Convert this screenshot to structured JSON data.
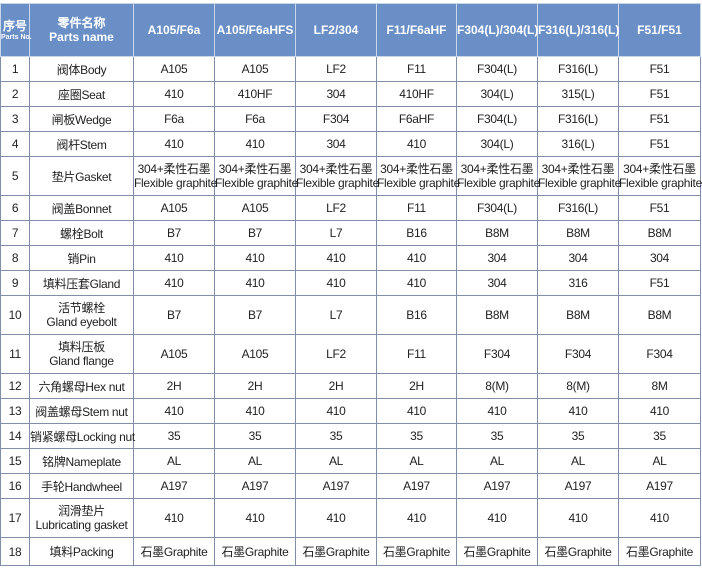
{
  "header": {
    "no_cn": "序号",
    "no_en": "Parts No.",
    "name_cn": "零件名称",
    "name_en": "Parts name",
    "materials": [
      "A105/F6a",
      "A105/F6aHFS",
      "LF2/304",
      "F11/F6aHF",
      "F304(L)/304(L)",
      "F316(L)/316(L)",
      "F51/F51"
    ]
  },
  "colors": {
    "header_bg": "#6a8fc7",
    "header_text": "#ffffff"
  },
  "rows": [
    {
      "no": "1",
      "name": [
        "阀体Body"
      ],
      "values": [
        [
          "A105"
        ],
        [
          "A105"
        ],
        [
          "LF2"
        ],
        [
          "F11"
        ],
        [
          "F304(L)"
        ],
        [
          "F316(L)"
        ],
        [
          "F51"
        ]
      ]
    },
    {
      "no": "2",
      "name": [
        "座圈Seat"
      ],
      "values": [
        [
          "410"
        ],
        [
          "410HF"
        ],
        [
          "304"
        ],
        [
          "410HF"
        ],
        [
          "304(L)"
        ],
        [
          "315(L)"
        ],
        [
          "F51"
        ]
      ]
    },
    {
      "no": "3",
      "name": [
        "闸板Wedge"
      ],
      "values": [
        [
          "F6a"
        ],
        [
          "F6a"
        ],
        [
          "F304"
        ],
        [
          "F6aHF"
        ],
        [
          "F304(L)"
        ],
        [
          "F316(L)"
        ],
        [
          "F51"
        ]
      ]
    },
    {
      "no": "4",
      "name": [
        "阀杆Stem"
      ],
      "values": [
        [
          "410"
        ],
        [
          "410"
        ],
        [
          "304"
        ],
        [
          "410"
        ],
        [
          "304(L)"
        ],
        [
          "316(L)"
        ],
        [
          "F51"
        ]
      ]
    },
    {
      "no": "5",
      "name": [
        "垫片Gasket"
      ],
      "values": [
        [
          "304+柔性石墨",
          "Flexible graphite"
        ],
        [
          "304+柔性石墨",
          "Flexible graphite"
        ],
        [
          "304+柔性石墨",
          "Flexible graphite"
        ],
        [
          "304+柔性石墨",
          "Flexible graphite"
        ],
        [
          "304+柔性石墨",
          "Flexible graphite"
        ],
        [
          "304+柔性石墨",
          "Flexible graphite"
        ],
        [
          "304+柔性石墨",
          "Flexible graphite"
        ]
      ]
    },
    {
      "no": "6",
      "name": [
        "阀盖Bonnet"
      ],
      "values": [
        [
          "A105"
        ],
        [
          "A105"
        ],
        [
          "LF2"
        ],
        [
          "F11"
        ],
        [
          "F304(L)"
        ],
        [
          "F316(L)"
        ],
        [
          "F51"
        ]
      ]
    },
    {
      "no": "7",
      "name": [
        "螺栓Bolt"
      ],
      "values": [
        [
          "B7"
        ],
        [
          "B7"
        ],
        [
          "L7"
        ],
        [
          "B16"
        ],
        [
          "B8M"
        ],
        [
          "B8M"
        ],
        [
          "B8M"
        ]
      ]
    },
    {
      "no": "8",
      "name": [
        "销Pin"
      ],
      "values": [
        [
          "410"
        ],
        [
          "410"
        ],
        [
          "410"
        ],
        [
          "410"
        ],
        [
          "304"
        ],
        [
          "304"
        ],
        [
          "304"
        ]
      ]
    },
    {
      "no": "9",
      "name": [
        "填料压套Gland"
      ],
      "values": [
        [
          "410"
        ],
        [
          "410"
        ],
        [
          "410"
        ],
        [
          "410"
        ],
        [
          "304"
        ],
        [
          "316"
        ],
        [
          "F51"
        ]
      ]
    },
    {
      "no": "10",
      "name": [
        "活节螺栓",
        "Gland eyebolt"
      ],
      "values": [
        [
          "B7"
        ],
        [
          "B7"
        ],
        [
          "L7"
        ],
        [
          "B16"
        ],
        [
          "B8M"
        ],
        [
          "B8M"
        ],
        [
          "B8M"
        ]
      ]
    },
    {
      "no": "11",
      "name": [
        "填料压板",
        "Gland flange"
      ],
      "values": [
        [
          "A105"
        ],
        [
          "A105"
        ],
        [
          "LF2"
        ],
        [
          "F11"
        ],
        [
          "F304"
        ],
        [
          "F304"
        ],
        [
          "F304"
        ]
      ]
    },
    {
      "no": "12",
      "name": [
        "六角螺母Hex nut"
      ],
      "values": [
        [
          "2H"
        ],
        [
          "2H"
        ],
        [
          "2H"
        ],
        [
          "2H"
        ],
        [
          "8(M)"
        ],
        [
          "8(M)"
        ],
        [
          "8M"
        ]
      ]
    },
    {
      "no": "13",
      "name": [
        "阀盖螺母Stem nut"
      ],
      "values": [
        [
          "410"
        ],
        [
          "410"
        ],
        [
          "410"
        ],
        [
          "410"
        ],
        [
          "410"
        ],
        [
          "410"
        ],
        [
          "410"
        ]
      ]
    },
    {
      "no": "14",
      "name": [
        "销紧螺母Locking nut"
      ],
      "values": [
        [
          "35"
        ],
        [
          "35"
        ],
        [
          "35"
        ],
        [
          "35"
        ],
        [
          "35"
        ],
        [
          "35"
        ],
        [
          "35"
        ]
      ]
    },
    {
      "no": "15",
      "name": [
        "铭牌Nameplate"
      ],
      "values": [
        [
          "AL"
        ],
        [
          "AL"
        ],
        [
          "AL"
        ],
        [
          "AL"
        ],
        [
          "AL"
        ],
        [
          "AL"
        ],
        [
          "AL"
        ]
      ]
    },
    {
      "no": "16",
      "name": [
        "手轮Handwheel"
      ],
      "values": [
        [
          "A197"
        ],
        [
          "A197"
        ],
        [
          "A197"
        ],
        [
          "A197"
        ],
        [
          "A197"
        ],
        [
          "A197"
        ],
        [
          "A197"
        ]
      ]
    },
    {
      "no": "17",
      "name": [
        "润滑垫片",
        "Lubricating gasket"
      ],
      "values": [
        [
          "410"
        ],
        [
          "410"
        ],
        [
          "410"
        ],
        [
          "410"
        ],
        [
          "410"
        ],
        [
          "410"
        ],
        [
          "410"
        ]
      ]
    },
    {
      "no": "18",
      "name": [
        "填料Packing"
      ],
      "values": [
        [
          "石墨Graphite"
        ],
        [
          "石墨Graphite"
        ],
        [
          "石墨Graphite"
        ],
        [
          "石墨Graphite"
        ],
        [
          "石墨Graphite"
        ],
        [
          "石墨Graphite"
        ],
        [
          "石墨Graphite"
        ]
      ]
    }
  ]
}
